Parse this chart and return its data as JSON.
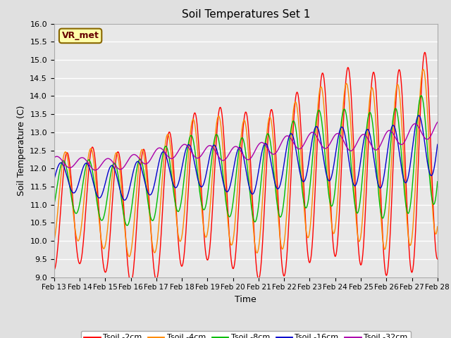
{
  "title": "Soil Temperatures Set 1",
  "xlabel": "Time",
  "ylabel": "Soil Temperature (C)",
  "ylim": [
    9.0,
    16.0
  ],
  "yticks": [
    9.0,
    9.5,
    10.0,
    10.5,
    11.0,
    11.5,
    12.0,
    12.5,
    13.0,
    13.5,
    14.0,
    14.5,
    15.0,
    15.5,
    16.0
  ],
  "x_labels": [
    "Feb 13",
    "Feb 14",
    "Feb 15",
    "Feb 16",
    "Feb 17",
    "Feb 18",
    "Feb 19",
    "Feb 20",
    "Feb 21",
    "Feb 22",
    "Feb 23",
    "Feb 24",
    "Feb 25",
    "Feb 26",
    "Feb 27",
    "Feb 28"
  ],
  "colors": {
    "Tsoil -2cm": "#ff0000",
    "Tsoil -4cm": "#ff8800",
    "Tsoil -8cm": "#00bb00",
    "Tsoil -16cm": "#0000cc",
    "Tsoil -32cm": "#aa00aa"
  },
  "bg_color": "#e0e0e0",
  "plot_bg_color": "#e8e8e8",
  "annotation_text": "VR_met",
  "annotation_box_color": "#ffffaa",
  "annotation_border_color": "#886600"
}
